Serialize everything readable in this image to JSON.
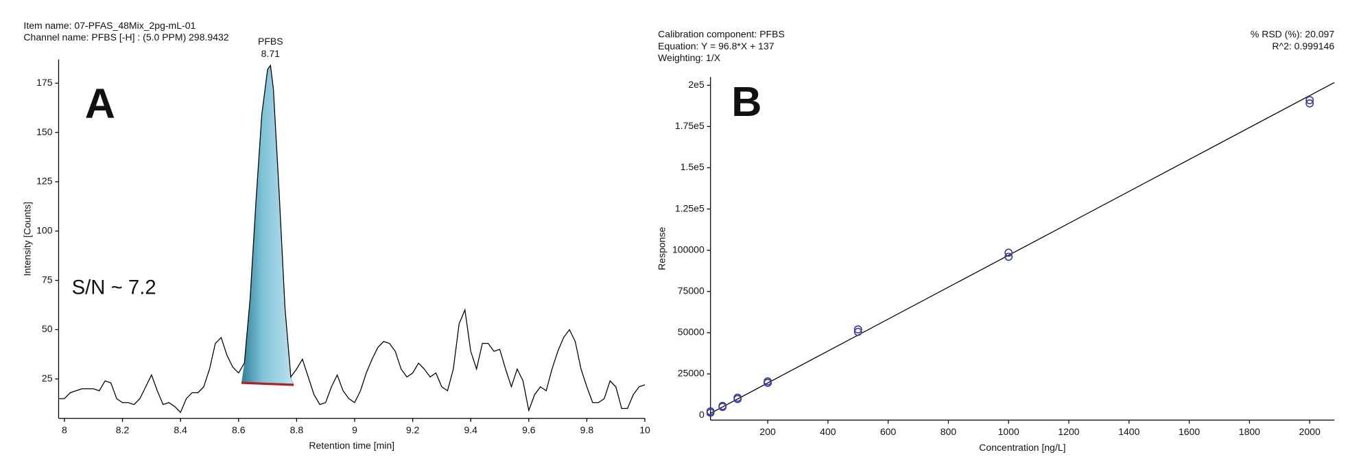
{
  "chart_data": [
    {
      "type": "line",
      "header": [
        "Item name: 07-PFAS_48Mix_2pg-mL-01",
        "Channel name: PFBS [-H] : (5.0 PPM) 298.9432"
      ],
      "panel_label": "A",
      "annotation": "S/N ~ 7.2",
      "xlabel": "Retention time [min]",
      "ylabel": "Intensity [Counts]",
      "xlim": [
        7.98,
        10.0
      ],
      "ylim": [
        5,
        187
      ],
      "xticks": [
        8,
        8.2,
        8.4,
        8.6,
        8.8,
        9,
        9.2,
        9.4,
        9.6,
        9.8,
        10
      ],
      "yticks": [
        25,
        50,
        75,
        100,
        125,
        150,
        175
      ],
      "color": "#000000",
      "x": [
        7.98,
        8.0,
        8.02,
        8.04,
        8.06,
        8.08,
        8.1,
        8.12,
        8.14,
        8.16,
        8.18,
        8.2,
        8.22,
        8.24,
        8.26,
        8.28,
        8.3,
        8.32,
        8.34,
        8.36,
        8.38,
        8.4,
        8.42,
        8.44,
        8.46,
        8.48,
        8.5,
        8.52,
        8.54,
        8.56,
        8.58,
        8.6,
        8.62,
        8.64,
        8.66,
        8.68,
        8.7,
        8.71,
        8.72,
        8.74,
        8.76,
        8.78,
        8.8,
        8.82,
        8.84,
        8.86,
        8.88,
        8.9,
        8.92,
        8.94,
        8.96,
        8.98,
        9.0,
        9.02,
        9.04,
        9.06,
        9.08,
        9.1,
        9.12,
        9.14,
        9.16,
        9.18,
        9.2,
        9.22,
        9.24,
        9.26,
        9.28,
        9.3,
        9.32,
        9.34,
        9.36,
        9.38,
        9.4,
        9.42,
        9.44,
        9.46,
        9.48,
        9.5,
        9.52,
        9.54,
        9.56,
        9.58,
        9.6,
        9.62,
        9.64,
        9.66,
        9.68,
        9.7,
        9.72,
        9.74,
        9.76,
        9.78,
        9.8,
        9.82,
        9.84,
        9.86,
        9.88,
        9.9,
        9.92,
        9.94,
        9.96,
        9.98,
        10.0
      ],
      "values": [
        15,
        15,
        18,
        19,
        20,
        20,
        20,
        19,
        24,
        23,
        15,
        13,
        13,
        12,
        15,
        21,
        27,
        19,
        12,
        13,
        11,
        8,
        15,
        18,
        18,
        21,
        30,
        43,
        46,
        37,
        31,
        28,
        33,
        66,
        115,
        159,
        182,
        184,
        172,
        119,
        61,
        26,
        30,
        35,
        26,
        17,
        12,
        13,
        21,
        27,
        19,
        15,
        13,
        19,
        28,
        35,
        41,
        44,
        43,
        39,
        30,
        26,
        28,
        33,
        30,
        26,
        28,
        21,
        19,
        30,
        53,
        60,
        39,
        30,
        43,
        43,
        39,
        40,
        30,
        21,
        30,
        24,
        9,
        17,
        21,
        19,
        30,
        39,
        46,
        50,
        44,
        30,
        21,
        13,
        13,
        15,
        24,
        21,
        10,
        10,
        17,
        21,
        22
      ],
      "peak": {
        "name": "PFBS",
        "rt": 8.71,
        "color": "#7fc3d8"
      },
      "baseline": {
        "x": [
          8.61,
          8.79
        ],
        "y": [
          23,
          22
        ],
        "color": "#b22222"
      }
    },
    {
      "type": "scatter",
      "header": [
        "Calibration component: PFBS",
        "Equation: Y = 96.8*X + 137",
        "Weighting: 1/X"
      ],
      "header_right": [
        "% RSD (%): 20.097",
        "R^2: 0.999146"
      ],
      "panel_label": "B",
      "xlabel": "Concentration [ng/L]",
      "ylabel": "Response",
      "xlim": [
        10,
        2082
      ],
      "ylim": [
        -3000,
        205000
      ],
      "xticks": [
        200,
        400,
        600,
        800,
        1000,
        1200,
        1400,
        1600,
        1800,
        2000
      ],
      "yticks": [
        0,
        25000,
        50000,
        75000,
        100000,
        {
          "value": 125000,
          "label": "1.25e5"
        },
        {
          "value": 150000,
          "label": "1.5e5"
        },
        {
          "value": 175000,
          "label": "1.75e5"
        },
        {
          "value": 200000,
          "label": "2e5"
        }
      ],
      "color": "#3b3f9c",
      "x": [
        10,
        10,
        50,
        50,
        100,
        100,
        200,
        200,
        500,
        500,
        1000,
        1000,
        2000,
        2000
      ],
      "y": [
        1500,
        2300,
        5000,
        5600,
        9800,
        10600,
        19600,
        20500,
        50500,
        52000,
        96000,
        98500,
        189000,
        191000
      ],
      "fit_line": {
        "x": [
          10,
          2082
        ],
        "y": [
          1105,
          201675
        ],
        "color": "#000000"
      }
    }
  ]
}
